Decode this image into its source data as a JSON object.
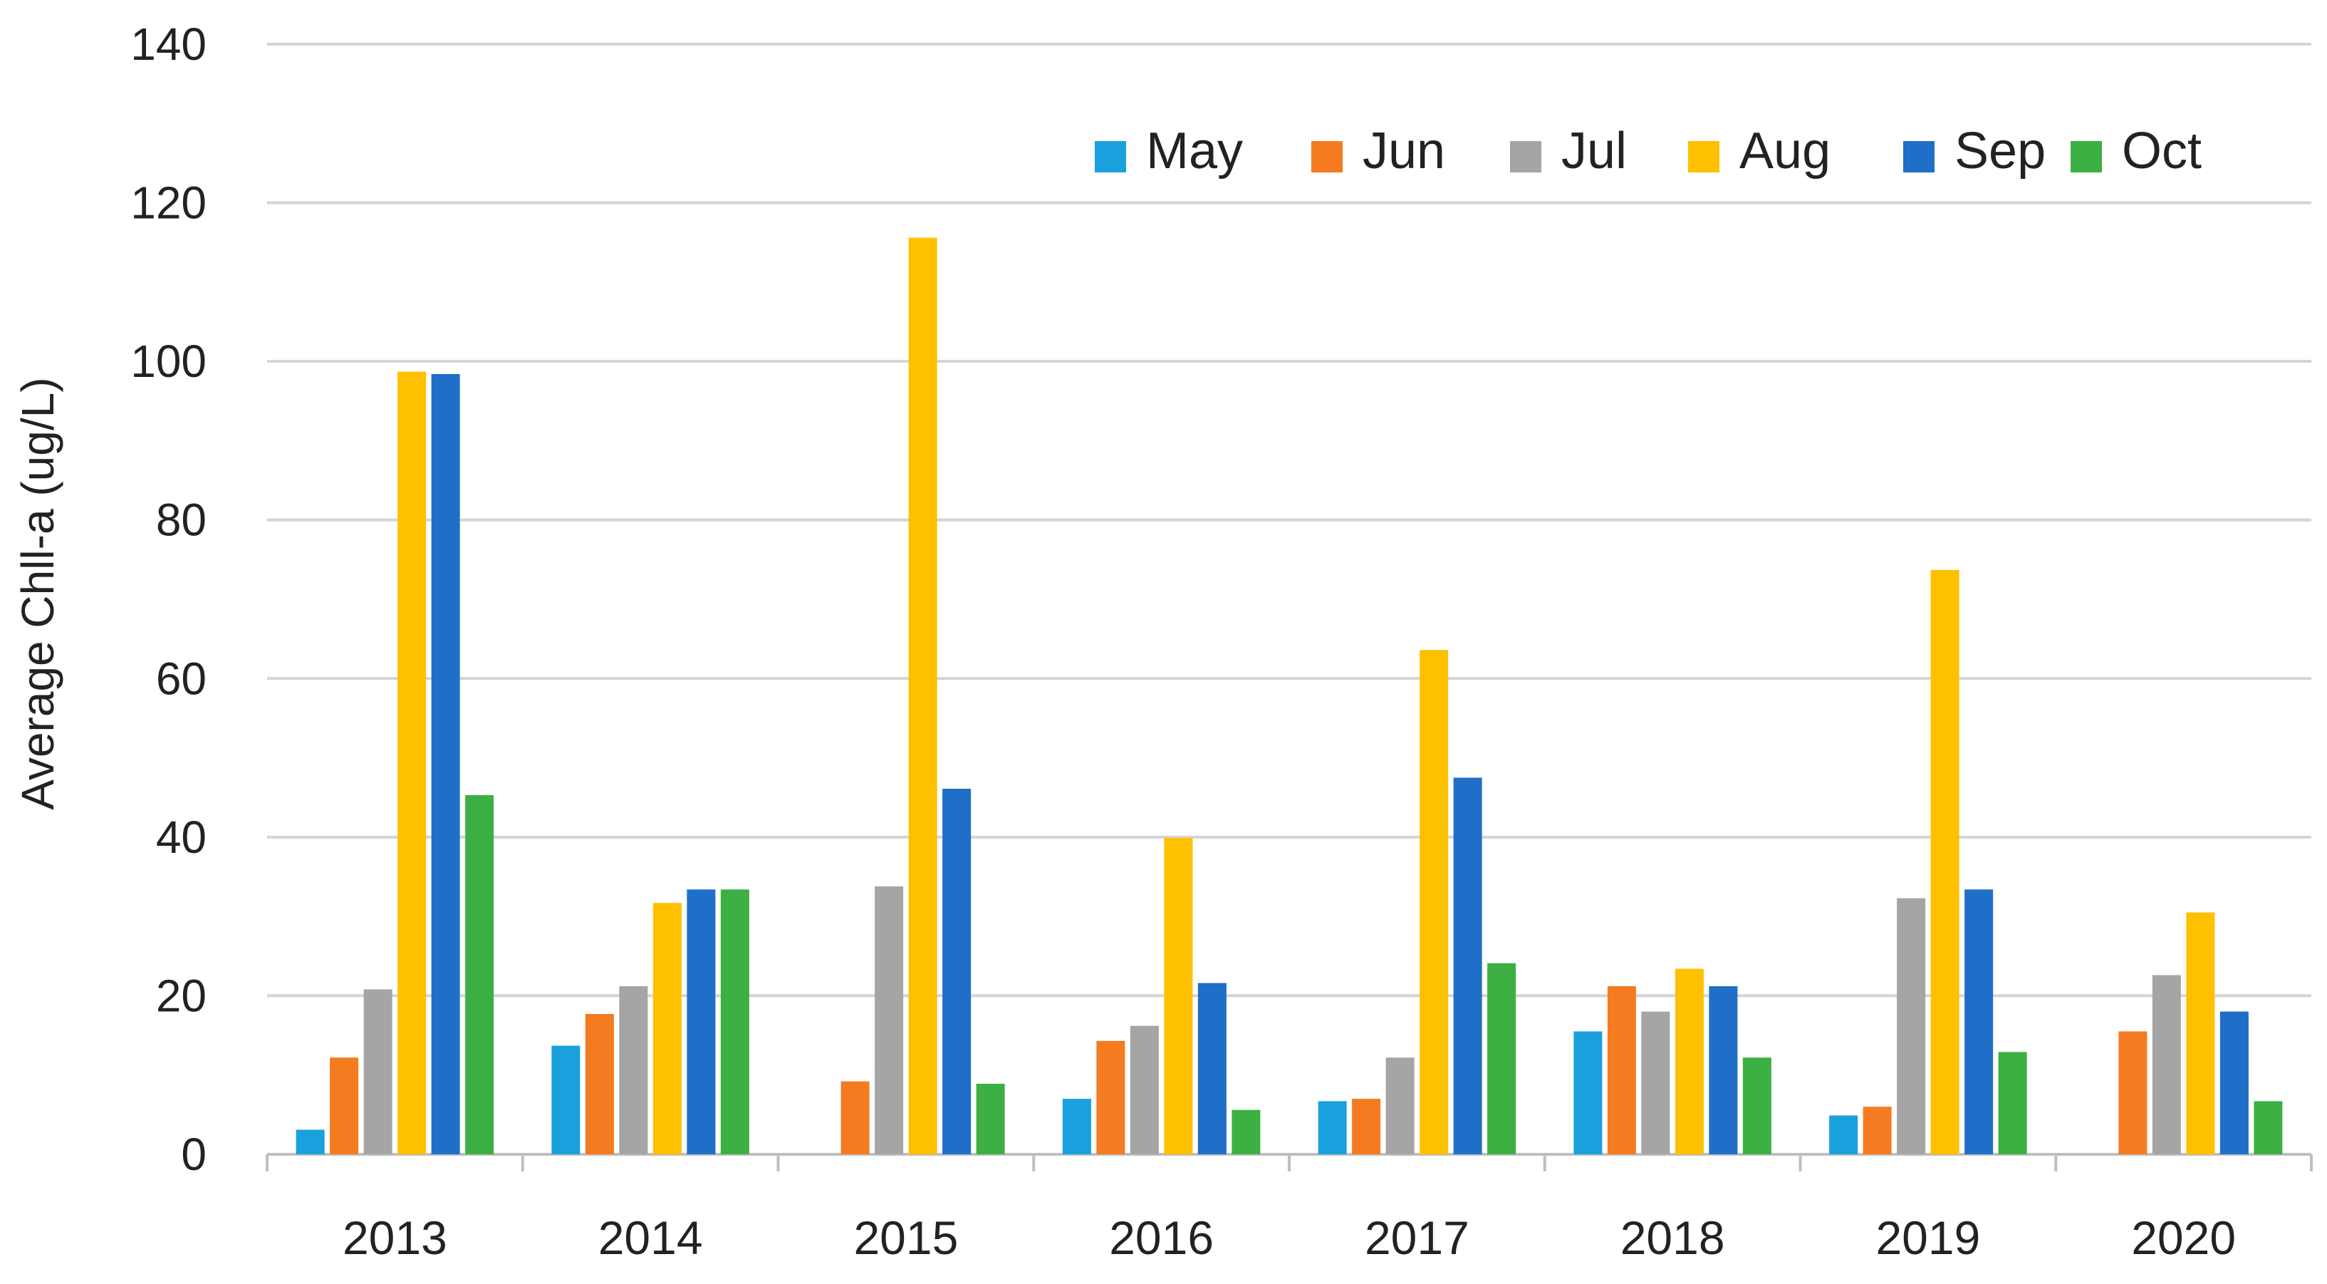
{
  "chart_data": {
    "type": "bar",
    "title": "",
    "xlabel": "",
    "ylabel": "Average Chll-a (ug/L)",
    "ylim": [
      0,
      140
    ],
    "yticks": [
      0,
      20,
      40,
      60,
      80,
      100,
      120,
      140
    ],
    "grid": true,
    "legend_position": "top-right",
    "categories": [
      "2013",
      "2014",
      "2015",
      "2016",
      "2017",
      "2018",
      "2019",
      "2020"
    ],
    "series": [
      {
        "name": "May",
        "color": "#1aa0dd",
        "values": [
          3.1,
          13.7,
          null,
          7.0,
          6.7,
          15.5,
          4.9,
          null
        ]
      },
      {
        "name": "Jun",
        "color": "#f47b20",
        "values": [
          12.2,
          17.7,
          9.2,
          14.3,
          7.0,
          21.2,
          6.0,
          15.5
        ]
      },
      {
        "name": "Jul",
        "color": "#a5a5a5",
        "values": [
          20.8,
          21.2,
          33.8,
          16.2,
          12.2,
          18.0,
          32.3,
          22.6
        ]
      },
      {
        "name": "Aug",
        "color": "#ffc000",
        "values": [
          98.7,
          31.7,
          115.6,
          39.9,
          63.6,
          23.4,
          73.7,
          30.5
        ]
      },
      {
        "name": "Sep",
        "color": "#1f6ec8",
        "values": [
          98.4,
          33.4,
          46.1,
          21.6,
          47.5,
          21.2,
          33.4,
          18.0
        ]
      },
      {
        "name": "Oct",
        "color": "#3cb043",
        "values": [
          45.3,
          33.4,
          8.9,
          5.6,
          24.1,
          12.2,
          12.9,
          6.7
        ]
      }
    ]
  }
}
